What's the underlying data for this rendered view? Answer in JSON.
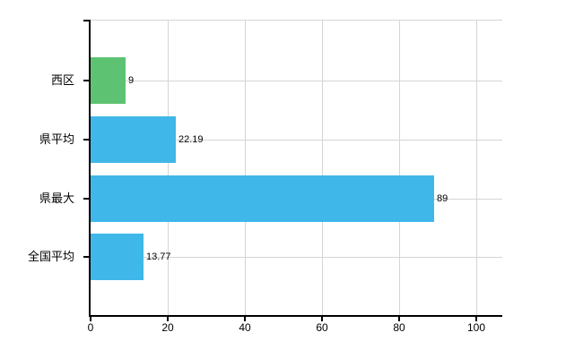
{
  "chart_data": {
    "type": "bar",
    "orientation": "horizontal",
    "title": "",
    "xlabel": "",
    "ylabel": "",
    "categories": [
      "西区",
      "県平均",
      "県最大",
      "全国平均"
    ],
    "values": [
      9,
      22.19,
      89,
      13.77
    ],
    "value_labels": [
      "9",
      "22.19",
      "89",
      "13.77"
    ],
    "bar_colors": [
      "#5dc372",
      "#3fb7e8",
      "#3fb7e8",
      "#3fb7e8"
    ],
    "x_ticks": [
      0,
      20,
      40,
      60,
      80,
      100
    ],
    "x_tick_labels": [
      "0",
      "20",
      "40",
      "60",
      "80",
      "100"
    ],
    "xlim": [
      0,
      106.7
    ],
    "grid": true,
    "legend": false,
    "colors": {
      "axis": "#000000",
      "grid": "#d5d5d5",
      "text": "#000000",
      "background": "#ffffff"
    }
  }
}
